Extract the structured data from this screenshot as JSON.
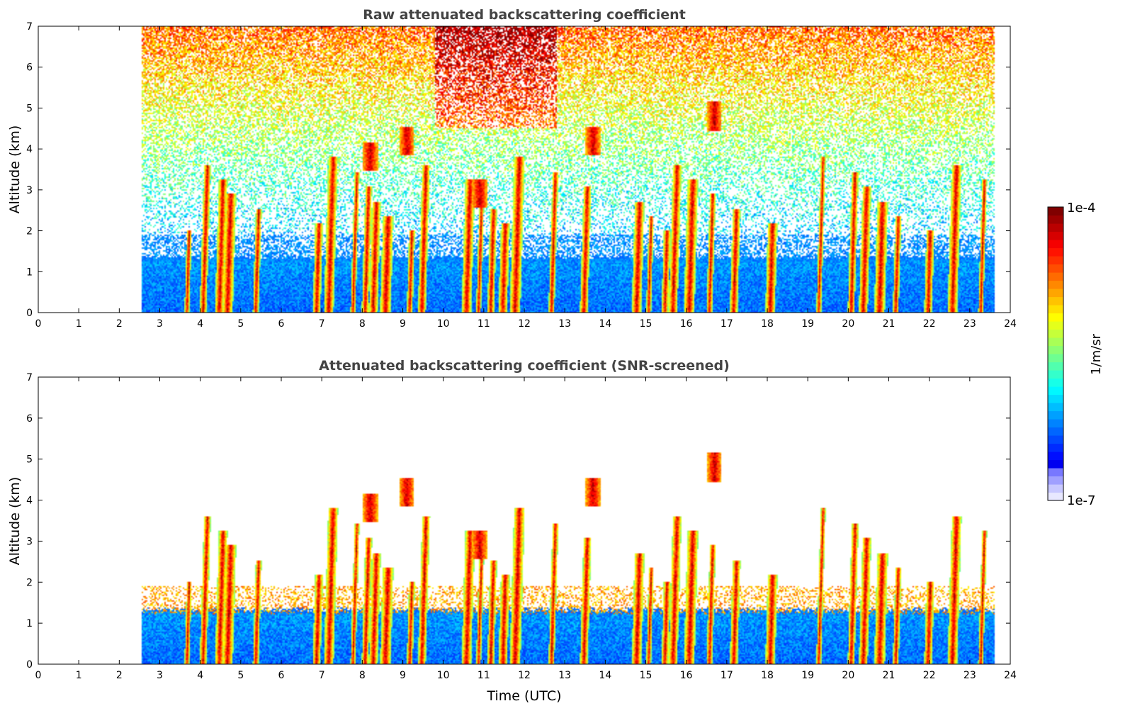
{
  "chart_data": [
    {
      "type": "heatmap",
      "title": "Raw attenuated backscattering coefficient",
      "xlabel": "",
      "ylabel": "Altitude (km)",
      "xlim": [
        0,
        24
      ],
      "ylim": [
        0,
        7
      ],
      "xticks": [
        "0",
        "1",
        "2",
        "3",
        "4",
        "5",
        "6",
        "7",
        "8",
        "9",
        "10",
        "11",
        "12",
        "13",
        "14",
        "15",
        "16",
        "17",
        "18",
        "19",
        "20",
        "21",
        "22",
        "23",
        "24"
      ],
      "yticks": [
        "0",
        "1",
        "2",
        "3",
        "4",
        "5",
        "6",
        "7"
      ],
      "data_time_range_utc": [
        2.55,
        23.6
      ],
      "screened": false
    },
    {
      "type": "heatmap",
      "title": "Attenuated backscattering coefficient (SNR-screened)",
      "xlabel": "Time (UTC)",
      "ylabel": "Altitude (km)",
      "xlim": [
        0,
        24
      ],
      "ylim": [
        0,
        7
      ],
      "xticks": [
        "0",
        "1",
        "2",
        "3",
        "4",
        "5",
        "6",
        "7",
        "8",
        "9",
        "10",
        "11",
        "12",
        "13",
        "14",
        "15",
        "16",
        "17",
        "18",
        "19",
        "20",
        "21",
        "22",
        "23",
        "24"
      ],
      "yticks": [
        "0",
        "1",
        "2",
        "3",
        "4",
        "5",
        "6",
        "7"
      ],
      "data_time_range_utc": [
        2.55,
        23.6
      ],
      "screened": true
    }
  ],
  "colorbar": {
    "label": "1/m/sr",
    "max_label": "1e-4",
    "min_label": "1e-7",
    "scale": "log",
    "range": [
      1e-07,
      0.0001
    ],
    "colormap": "jet"
  },
  "features": {
    "boundary_layer_top_km": 1.4,
    "cloud_columns_utc": [
      3.7,
      4.1,
      4.5,
      4.7,
      5.4,
      6.9,
      7.2,
      7.8,
      8.1,
      8.3,
      8.6,
      9.2,
      9.5,
      10.6,
      10.9,
      11.2,
      11.5,
      11.8,
      12.7,
      13.5,
      14.8,
      15.1,
      15.5,
      15.7,
      16.1,
      16.6,
      17.2,
      18.1,
      19.3,
      20.1,
      20.4,
      20.8,
      21.2,
      22.0,
      22.6,
      23.3
    ],
    "elevated_layers": [
      {
        "time": 10.9,
        "alt_km": 2.9
      },
      {
        "time": 13.7,
        "alt_km": 4.2
      },
      {
        "time": 16.7,
        "alt_km": 4.8
      },
      {
        "time": 8.2,
        "alt_km": 3.8
      },
      {
        "time": 9.1,
        "alt_km": 4.2
      }
    ]
  }
}
